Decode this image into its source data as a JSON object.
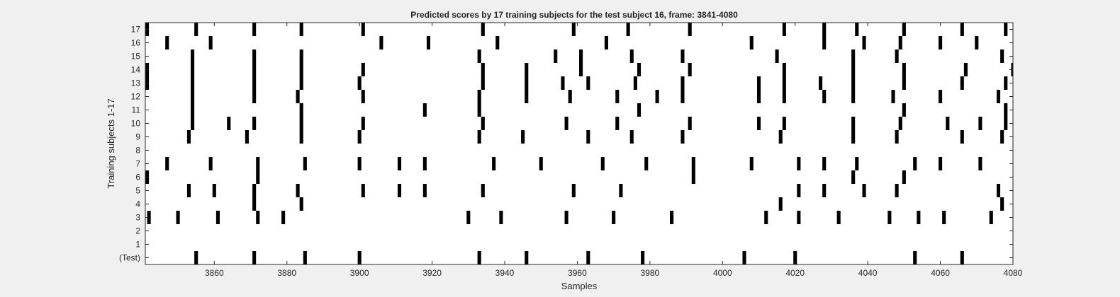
{
  "chart_data": {
    "type": "heatmap",
    "title": "Predicted scores by 17 training subjects for the test subject 16, frame: 3841-4080",
    "xlabel": "Samples",
    "ylabel": "Training subjects 1-17",
    "xlim": [
      3841,
      4080
    ],
    "x_ticks": [
      3860,
      3880,
      3900,
      3920,
      3940,
      3960,
      3980,
      4000,
      4020,
      4040,
      4060,
      4080
    ],
    "y_tick_labels": [
      "(Test)",
      "1",
      "2",
      "3",
      "4",
      "5",
      "6",
      "7",
      "8",
      "9",
      "10",
      "11",
      "12",
      "13",
      "14",
      "15",
      "16",
      "17"
    ],
    "colors": {
      "background": "#f0f0f0",
      "plot": "#ffffff",
      "mark": "#000000",
      "axis": "#262626"
    },
    "series": [
      {
        "name": "(Test)",
        "values": [
          3855,
          3871,
          3885,
          3900,
          3933,
          3946,
          3963,
          3978,
          4006,
          4020,
          4053,
          4066
        ]
      },
      {
        "name": "1",
        "values": []
      },
      {
        "name": "2",
        "values": []
      },
      {
        "name": "3",
        "values": [
          3842,
          3850,
          3861,
          3872,
          3879,
          3930,
          3939,
          3957,
          3970,
          3986,
          4012,
          4021,
          4032,
          4046,
          4054,
          4061,
          4074
        ]
      },
      {
        "name": "4",
        "values": [
          3871,
          3884,
          4016,
          4077
        ]
      },
      {
        "name": "5",
        "values": [
          3853,
          3860,
          3871,
          3883,
          3901,
          3911,
          3918,
          3934,
          3959,
          3972,
          4021,
          4028,
          4039,
          4048,
          4076
        ]
      },
      {
        "name": "6",
        "values": [
          3841,
          3872,
          3992,
          4036,
          4050
        ]
      },
      {
        "name": "7",
        "values": [
          3847,
          3859,
          3872,
          3885,
          3900,
          3911,
          3918,
          3937,
          3950,
          3967,
          3979,
          3992,
          4008,
          4021,
          4028,
          4037,
          4053,
          4060,
          4071
        ]
      },
      {
        "name": "8",
        "values": []
      },
      {
        "name": "9",
        "values": [
          3853,
          3869,
          3884,
          3900,
          3933,
          3945,
          3963,
          3975,
          3989,
          4016,
          4036,
          4048,
          4066,
          4077
        ]
      },
      {
        "name": "10",
        "values": [
          3854,
          3864,
          3871,
          3884,
          3901,
          3934,
          3957,
          3971,
          3991,
          4010,
          4017,
          4036,
          4049,
          4062,
          4071,
          4078
        ]
      },
      {
        "name": "11",
        "values": [
          3854,
          3884,
          3918,
          3933,
          3977,
          4050,
          4078
        ]
      },
      {
        "name": "12",
        "values": [
          3854,
          3871,
          3883,
          3901,
          3933,
          3946,
          3958,
          3971,
          3982,
          3989,
          4010,
          4017,
          4028,
          4036,
          4047,
          4060,
          4076
        ]
      },
      {
        "name": "13",
        "values": [
          3841,
          3854,
          3871,
          3884,
          3900,
          3934,
          3946,
          3956,
          3963,
          3976,
          3989,
          4010,
          4017,
          4027,
          4036,
          4050,
          4066,
          4078
        ]
      },
      {
        "name": "14",
        "values": [
          3841,
          3854,
          3871,
          3884,
          3901,
          3934,
          3946,
          3961,
          3977,
          3991,
          4017,
          4036,
          4050,
          4067,
          4080
        ]
      },
      {
        "name": "15",
        "values": [
          3854,
          3871,
          3884,
          3933,
          3954,
          3961,
          3975,
          3989,
          4015,
          4036,
          4048,
          4077
        ]
      },
      {
        "name": "16",
        "values": [
          3847,
          3859,
          3906,
          3919,
          3938,
          3968,
          4008,
          4028,
          4039,
          4049,
          4060,
          4070
        ]
      },
      {
        "name": "17",
        "values": [
          3841,
          3855,
          3871,
          3884,
          3901,
          3934,
          3959,
          3974,
          3991,
          4017,
          4028,
          4037,
          4050,
          4066,
          4078
        ]
      }
    ]
  }
}
